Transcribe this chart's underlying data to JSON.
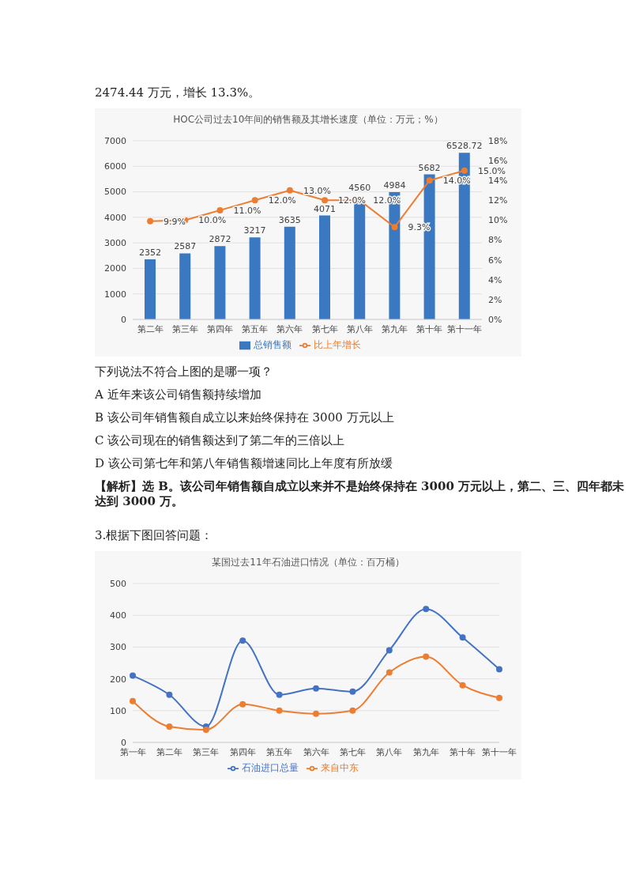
{
  "chart_data": [
    {
      "type": "bar",
      "title": "HOC公司过去10年间的销售额及其增长速度（单位：万元；%）",
      "categories": [
        "第二年",
        "第三年",
        "第四年",
        "第五年",
        "第六年",
        "第七年",
        "第八年",
        "第九年",
        "第十年",
        "第十一年"
      ],
      "series": [
        {
          "name": "总销售额",
          "type": "bar",
          "color": "#3a78c2",
          "values": [
            2352,
            2587,
            2872,
            3217,
            3635,
            4071,
            4560,
            4984,
            5682,
            6528.72
          ],
          "value_labels": [
            "2352",
            "2587",
            "2872",
            "3217",
            "3635",
            "4071",
            "4560",
            "4984",
            "5682",
            "6528.72"
          ]
        },
        {
          "name": "比上年增长",
          "type": "line",
          "axis": "y2",
          "color": "#ed7d31",
          "values": [
            9.9,
            10.0,
            11.0,
            12.0,
            13.0,
            12.0,
            12.0,
            9.3,
            14.0,
            15.0
          ],
          "value_labels": [
            "9.9%",
            "10.0%",
            "11.0%",
            "12.0%",
            "13.0%",
            "12.0%",
            "12.0%",
            "9.3%",
            "14.0%",
            "15.0%"
          ]
        }
      ],
      "ylim": [
        0,
        7000
      ],
      "yticks": [
        0,
        1000,
        2000,
        3000,
        4000,
        5000,
        6000,
        7000
      ],
      "y2lim": [
        0,
        18
      ],
      "y2ticks": [
        {
          "value": 0,
          "label": "0%"
        },
        {
          "value": 2,
          "label": "2%"
        },
        {
          "value": 4,
          "label": "4%"
        },
        {
          "value": 6,
          "label": "6%"
        },
        {
          "value": 8,
          "label": "8%"
        },
        {
          "value": 10,
          "label": "10%"
        },
        {
          "value": 12,
          "label": "12%"
        },
        {
          "value": 14,
          "label": "14%"
        },
        {
          "value": 16,
          "label": "16%"
        },
        {
          "value": 18,
          "label": "18%"
        }
      ],
      "grid": "y",
      "legend": "bottom",
      "marker": "circle",
      "annotations": [
        "2474.44 万元，增长 13.3%。",
        "下列说法不符合上图的是哪一项？",
        "A 近年来该公司销售额持续增加",
        "B 该公司年销售额自成立以来始终保持在 3000 万元以上",
        "C 该公司现在的销售额达到了第二年的三倍以上",
        "D 该公司第七年和第八年销售额增速同比上年度有所放缓",
        "【解析】选 B。该公司年销售额自成立以来并不是始终保持在 3000 万元以上，第二、三、四年都未达到 3000 万。"
      ]
    },
    {
      "type": "line",
      "title": "某国过去11年石油进口情况（单位：百万桶）",
      "categories": [
        "第一年",
        "第二年",
        "第三年",
        "第四年",
        "第五年",
        "第六年",
        "第七年",
        "第八年",
        "第九年",
        "第十年",
        "第十一年"
      ],
      "series": [
        {
          "name": "石油进口总量",
          "color": "#4472c4",
          "values": [
            210,
            150,
            50,
            320,
            150,
            170,
            160,
            290,
            420,
            330,
            230
          ]
        },
        {
          "name": "来自中东",
          "color": "#ed7d31",
          "values": [
            130,
            50,
            40,
            120,
            100,
            90,
            100,
            220,
            270,
            180,
            140
          ]
        }
      ],
      "ylim": [
        0,
        500
      ],
      "yticks": [
        0,
        100,
        200,
        300,
        400,
        500
      ],
      "grid": "y",
      "legend": "bottom",
      "marker": "circle",
      "annotations": [
        "3.根据下图回答问题："
      ]
    }
  ]
}
